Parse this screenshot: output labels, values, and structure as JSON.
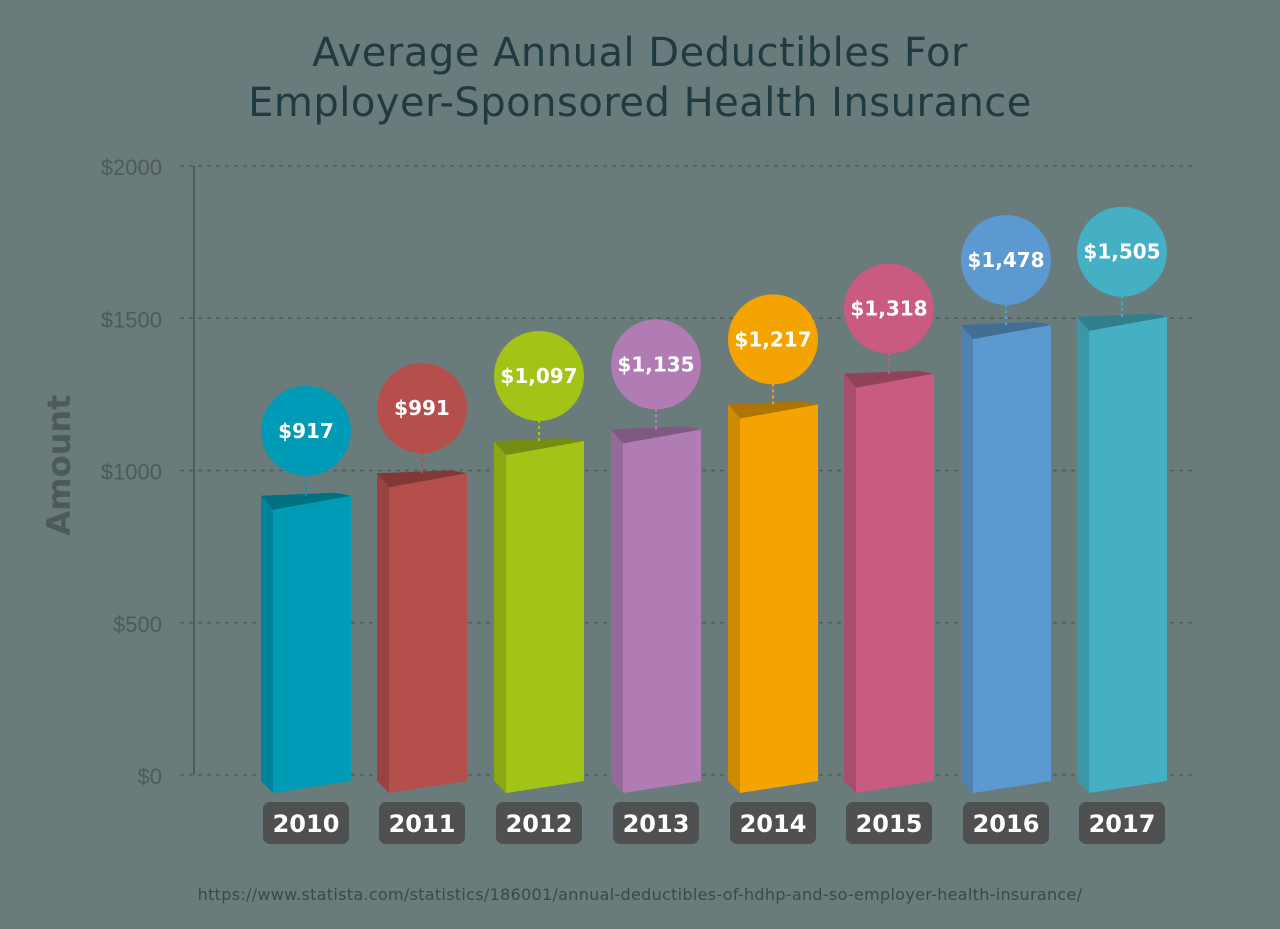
{
  "title_line1": "Average Annual Deductibles For",
  "title_line2": "Employer-Sponsored Health Insurance",
  "source": "https://www.statista.com/statistics/186001/annual-deductibles-of-hdhp-and-so-employer-health-insurance/",
  "chart_data": {
    "type": "bar",
    "ylabel": "Amount",
    "ylim": [
      0,
      2000
    ],
    "yticks": [
      0,
      500,
      1000,
      1500,
      2000
    ],
    "ytick_labels": [
      "$0",
      "$500",
      "$1000",
      "$1500",
      "$2000"
    ],
    "grid": true,
    "categories": [
      "2010",
      "2011",
      "2012",
      "2013",
      "2014",
      "2015",
      "2016",
      "2017"
    ],
    "values": [
      917,
      991,
      1097,
      1135,
      1217,
      1318,
      1478,
      1505
    ],
    "value_labels": [
      "$917",
      "$991",
      "$1,097",
      "$1,135",
      "$1,217",
      "$1,318",
      "$1,478",
      "$1,505"
    ],
    "colors": [
      "#009bb6",
      "#b44f4b",
      "#a3c417",
      "#b17bb4",
      "#f4a300",
      "#c85b7f",
      "#5b99d0",
      "#45b0c3"
    ]
  }
}
